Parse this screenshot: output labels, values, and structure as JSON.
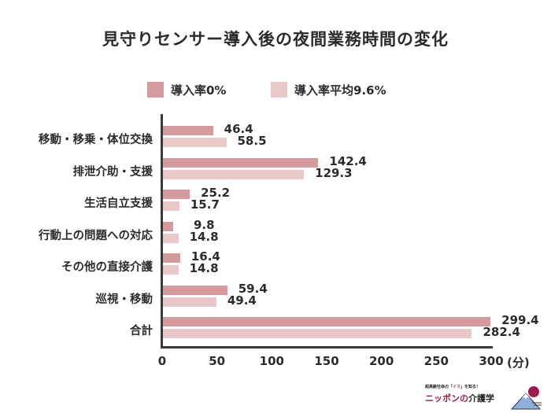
{
  "chart_data": {
    "type": "bar",
    "orientation": "horizontal",
    "title": "見守りセンサー導入後の夜間業務時間の変化",
    "categories": [
      "移動・移乗・体位交換",
      "排泄介助・支援",
      "生活自立支援",
      "行動上の問題への対応",
      "その他の直接介護",
      "巡視・移動",
      "合計"
    ],
    "series": [
      {
        "name": "導入率0%",
        "color": "#d49a9c",
        "values": [
          46.4,
          142.4,
          25.2,
          9.8,
          16.4,
          59.4,
          299.4
        ]
      },
      {
        "name": "導入率平均9.6%",
        "color": "#e9c8c9",
        "values": [
          58.5,
          129.3,
          15.7,
          14.8,
          14.8,
          49.4,
          282.4
        ]
      }
    ],
    "xlabel": "(分)",
    "ylabel": "",
    "xlim": [
      0,
      300
    ],
    "xticks": [
      "0",
      "50",
      "100",
      "150",
      "200",
      "250",
      "300"
    ],
    "grid": false,
    "legend_position": "top",
    "data_labels": true
  },
  "header": {
    "title": "見守りセンサー導入後の夜間業務時間の変化"
  },
  "legend": [
    {
      "label": "導入率0%",
      "color": "#d49a9c"
    },
    {
      "label": "導入率平均9.6%",
      "color": "#e9c8c9"
    }
  ],
  "axis": {
    "unit": "(分)"
  },
  "labels": {
    "s0": [
      "46.4",
      "142.4",
      "25.2",
      "9.8",
      "16.4",
      "59.4",
      "299.4"
    ],
    "s1": [
      "58.5",
      "129.3",
      "15.7",
      "14.8",
      "14.8",
      "49.4",
      "282.4"
    ]
  },
  "logo": {
    "tagline_pre": "超高齢社会の「",
    "tagline_hl": "イマ",
    "tagline_post": "」を知る！",
    "name_a": "ニッポンの",
    "name_b": "介護学"
  }
}
